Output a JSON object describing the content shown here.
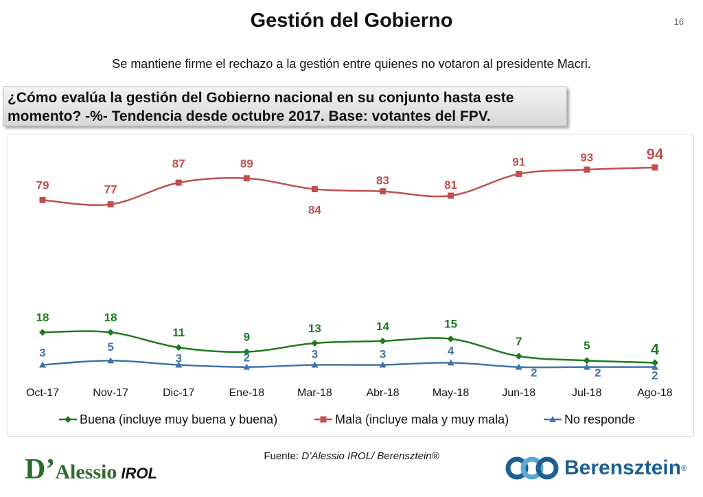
{
  "header": {
    "title": "Gestión del Gobierno",
    "page_number": "16",
    "subtitle": "Se mantiene firme el rechazo a la gestión entre quienes no votaron al presidente Macri.",
    "question_line1": "¿Cómo evalúa la gestión del Gobierno nacional en su conjunto hasta este",
    "question_line2": "momento? -%- Tendencia desde octubre 2017. Base: votantes del FPV."
  },
  "chart_data": {
    "type": "line",
    "title": "",
    "categories": [
      "Oct-17",
      "Nov-17",
      "Dic-17",
      "Ene-18",
      "Mar-18",
      "Abr-18",
      "May-18",
      "Jun-18",
      "Jul-18",
      "Ago-18"
    ],
    "ylim": [
      0,
      100
    ],
    "grid": false,
    "legend_position": "bottom",
    "series": [
      {
        "name": "Buena (incluye muy buena y buena)",
        "color": "#1e7a1e",
        "marker": "diamond",
        "values": [
          18,
          18,
          11,
          9,
          13,
          14,
          15,
          7,
          5,
          4
        ]
      },
      {
        "name": "Mala (incluye mala y muy mala)",
        "color": "#c0504d",
        "marker": "square",
        "values": [
          79,
          77,
          87,
          89,
          84,
          83,
          81,
          91,
          93,
          94
        ]
      },
      {
        "name": "No responde",
        "color": "#4472a8",
        "marker": "triangle",
        "values": [
          3,
          5,
          3,
          2,
          3,
          3,
          4,
          2,
          2,
          2
        ]
      }
    ]
  },
  "footer": {
    "source_prefix": "Fuente: ",
    "source_text": "D’Alessio IROL/ Berensztein®",
    "logo_left_d": "D’",
    "logo_left_name": "Alessio",
    "logo_left_irol": "IROL",
    "logo_right_name": "Berensztein",
    "logo_right_reg": "®"
  }
}
